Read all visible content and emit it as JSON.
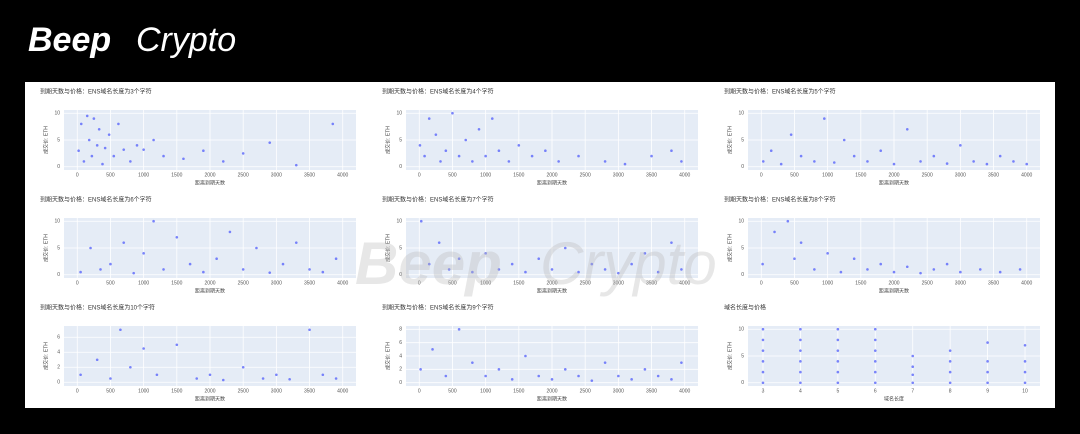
{
  "logo": {
    "bold": "Beep",
    "light": "Crypto"
  },
  "watermark": {
    "bold": "Beep",
    "light": "Crypto"
  },
  "chart_data": [
    {
      "type": "scatter",
      "title": "到期天数与价格：ENS域名长度为3个字符",
      "x_label": "距离到期天数",
      "y_label": "成交价: ETH",
      "color": "#636efa",
      "grid": true,
      "x": [
        20,
        60,
        100,
        150,
        180,
        220,
        250,
        300,
        330,
        380,
        420,
        480,
        550,
        620,
        700,
        800,
        900,
        1000,
        1150,
        1300,
        1600,
        1900,
        2200,
        2500,
        2900,
        3300,
        3850
      ],
      "y": [
        3,
        8,
        1,
        9.5,
        5,
        2,
        9,
        4,
        7,
        0.5,
        3.5,
        6,
        2,
        8,
        3.2,
        1,
        4,
        3.2,
        5,
        2,
        1.5,
        3,
        1,
        2.5,
        4.5,
        0.3,
        8
      ],
      "xlim": [
        -200,
        4200
      ],
      "ylim": [
        -0.6,
        10.6
      ],
      "xticks": [
        0,
        500,
        1000,
        1500,
        2000,
        2500,
        3000,
        3500,
        4000
      ],
      "yticks": [
        0,
        5,
        10
      ]
    },
    {
      "type": "scatter",
      "title": "到期天数与价格：ENS域名长度为4个字符",
      "x_label": "距离到期天数",
      "y_label": "成交价: ETH",
      "color": "#636efa",
      "grid": true,
      "x": [
        10,
        80,
        150,
        250,
        320,
        400,
        500,
        600,
        700,
        800,
        900,
        1000,
        1100,
        1200,
        1350,
        1500,
        1700,
        1900,
        2100,
        2400,
        2800,
        3100,
        3500,
        3800,
        3950
      ],
      "y": [
        4,
        2,
        9,
        6,
        1,
        3,
        10,
        2,
        5,
        1,
        7,
        2,
        9,
        3,
        1,
        4,
        2,
        3,
        1,
        2,
        1,
        0.5,
        2,
        3,
        1
      ],
      "xlim": [
        -200,
        4200
      ],
      "ylim": [
        -0.6,
        10.6
      ],
      "xticks": [
        0,
        500,
        1000,
        1500,
        2000,
        2500,
        3000,
        3500,
        4000
      ],
      "yticks": [
        0,
        5,
        10
      ]
    },
    {
      "type": "scatter",
      "title": "到期天数与价格：ENS域名长度为5个字符",
      "x_label": "距离到期天数",
      "y_label": "成交价: ETH",
      "color": "#636efa",
      "grid": true,
      "x": [
        30,
        150,
        300,
        450,
        600,
        800,
        950,
        1100,
        1250,
        1400,
        1600,
        1800,
        2000,
        2200,
        2400,
        2600,
        2800,
        3000,
        3200,
        3400,
        3600,
        3800,
        4000
      ],
      "y": [
        1,
        3,
        0.5,
        6,
        2,
        1,
        9,
        0.8,
        5,
        2,
        1,
        3,
        0.5,
        7,
        1,
        2,
        0.6,
        4,
        1,
        0.5,
        2,
        1,
        0.5
      ],
      "xlim": [
        -200,
        4200
      ],
      "ylim": [
        -0.6,
        10.6
      ],
      "xticks": [
        0,
        500,
        1000,
        1500,
        2000,
        2500,
        3000,
        3500,
        4000
      ],
      "yticks": [
        0,
        5,
        10
      ]
    },
    {
      "type": "scatter",
      "title": "到期天数与价格：ENS域名长度为6个字符",
      "x_label": "距离到期天数",
      "y_label": "成交价: ETH",
      "color": "#636efa",
      "grid": true,
      "x": [
        50,
        200,
        350,
        500,
        700,
        850,
        1000,
        1150,
        1300,
        1500,
        1700,
        1900,
        2100,
        2300,
        2500,
        2700,
        2900,
        3100,
        3300,
        3500,
        3700,
        3900
      ],
      "y": [
        0.5,
        5,
        1,
        2,
        6,
        0.3,
        4,
        10,
        1,
        7,
        2,
        0.5,
        3,
        8,
        1,
        5,
        0.4,
        2,
        6,
        1,
        0.5,
        3
      ],
      "xlim": [
        -200,
        4200
      ],
      "ylim": [
        -0.6,
        10.6
      ],
      "xticks": [
        0,
        500,
        1000,
        1500,
        2000,
        2500,
        3000,
        3500,
        4000
      ],
      "yticks": [
        0,
        5,
        10
      ]
    },
    {
      "type": "scatter",
      "title": "到期天数与价格：ENS域名长度为7个字符",
      "x_label": "距离到期天数",
      "y_label": "成交价: ETH",
      "color": "#636efa",
      "grid": true,
      "x": [
        30,
        150,
        300,
        450,
        600,
        800,
        1000,
        1200,
        1400,
        1600,
        1800,
        2000,
        2200,
        2400,
        2600,
        2800,
        3000,
        3200,
        3400,
        3600,
        3800,
        3950
      ],
      "y": [
        10,
        2,
        6,
        1,
        3,
        0.5,
        4,
        1,
        2,
        0.5,
        3,
        1,
        5,
        0.5,
        2,
        1,
        0.3,
        2,
        4,
        0.5,
        6,
        1
      ],
      "xlim": [
        -200,
        4200
      ],
      "ylim": [
        -0.6,
        10.6
      ],
      "xticks": [
        0,
        500,
        1000,
        1500,
        2000,
        2500,
        3000,
        3500,
        4000
      ],
      "yticks": [
        0,
        5,
        10
      ]
    },
    {
      "type": "scatter",
      "title": "到期天数与价格：ENS域名长度为8个字符",
      "x_label": "距离到期天数",
      "y_label": "成交价: ETH",
      "color": "#636efa",
      "grid": true,
      "x": [
        20,
        200,
        400,
        500,
        600,
        800,
        1000,
        1200,
        1400,
        1600,
        1800,
        2000,
        2200,
        2400,
        2600,
        2800,
        3000,
        3300,
        3600,
        3900
      ],
      "y": [
        2,
        8,
        10,
        3,
        6,
        1,
        4,
        0.5,
        3,
        1,
        2,
        0.5,
        1.5,
        0.3,
        1,
        2,
        0.5,
        1,
        0.5,
        1
      ],
      "xlim": [
        -200,
        4200
      ],
      "ylim": [
        -0.6,
        10.6
      ],
      "xticks": [
        0,
        500,
        1000,
        1500,
        2000,
        2500,
        3000,
        3500,
        4000
      ],
      "yticks": [
        0,
        5,
        10
      ]
    },
    {
      "type": "scatter",
      "title": "到期天数与价格：ENS域名长度为10个字符",
      "x_label": "距离到期天数",
      "y_label": "成交价: ETH",
      "color": "#636efa",
      "grid": true,
      "x": [
        50,
        300,
        500,
        650,
        800,
        1000,
        1200,
        1500,
        1800,
        2000,
        2200,
        2500,
        2800,
        3000,
        3200,
        3500,
        3700,
        3900
      ],
      "y": [
        1,
        3,
        0.5,
        7,
        2,
        4.5,
        1,
        5,
        0.5,
        1,
        0.3,
        2,
        0.5,
        1,
        0.4,
        7,
        1,
        0.5
      ],
      "xlim": [
        -200,
        4200
      ],
      "ylim": [
        -0.5,
        7.5
      ],
      "xticks": [
        0,
        500,
        1000,
        1500,
        2000,
        2500,
        3000,
        3500,
        4000
      ],
      "yticks": [
        0,
        2,
        4,
        6
      ]
    },
    {
      "type": "scatter",
      "title": "到期天数与价格：ENS域名长度为9个字符",
      "x_label": "距离到期天数",
      "y_label": "成交价: ETH",
      "color": "#636efa",
      "grid": true,
      "x": [
        20,
        200,
        400,
        600,
        800,
        1000,
        1200,
        1400,
        1600,
        1800,
        2000,
        2200,
        2400,
        2600,
        2800,
        3000,
        3200,
        3400,
        3600,
        3800,
        3950
      ],
      "y": [
        2,
        5,
        1,
        8,
        3,
        1,
        2,
        0.5,
        4,
        1,
        0.5,
        2,
        1,
        0.3,
        3,
        1,
        0.5,
        2,
        1,
        0.5,
        3
      ],
      "xlim": [
        -200,
        4200
      ],
      "ylim": [
        -0.5,
        8.5
      ],
      "xticks": [
        0,
        500,
        1000,
        1500,
        2000,
        2500,
        3000,
        3500,
        4000
      ],
      "yticks": [
        0,
        2,
        4,
        6,
        8
      ]
    },
    {
      "type": "scatter",
      "title": "域名长度与价格",
      "x_label": "域名长度",
      "y_label": "成交价: ETH",
      "color": "#636efa",
      "grid": true,
      "x": [
        3,
        3,
        3,
        3,
        3,
        3,
        4,
        4,
        4,
        4,
        4,
        4,
        5,
        5,
        5,
        5,
        5,
        5,
        6,
        6,
        6,
        6,
        6,
        6,
        7,
        7,
        7,
        7,
        8,
        8,
        8,
        8,
        9,
        9,
        9,
        9,
        10,
        10,
        10,
        10
      ],
      "y": [
        0,
        2,
        4,
        6,
        8,
        10,
        0,
        2,
        4,
        6,
        8,
        10,
        0,
        2,
        4,
        6,
        8,
        10,
        0,
        2,
        4,
        6,
        8,
        10,
        0,
        1.5,
        3,
        5,
        0,
        2,
        4,
        6,
        0,
        2,
        4,
        7.5,
        0,
        2,
        4,
        7
      ],
      "xlim": [
        2.6,
        10.4
      ],
      "ylim": [
        -0.6,
        10.6
      ],
      "xticks": [
        3,
        4,
        5,
        6,
        7,
        8,
        9,
        10
      ],
      "yticks": [
        0,
        5,
        10
      ]
    }
  ]
}
